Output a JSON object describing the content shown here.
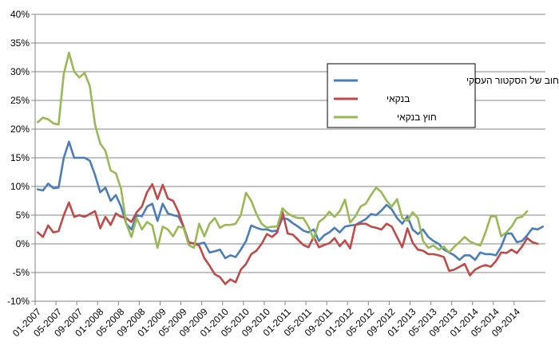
{
  "chart_data": {
    "type": "line",
    "title": "",
    "xlabel": "",
    "ylabel": "",
    "ylim": [
      -10,
      40
    ],
    "y_ticks": [
      "-10%",
      "-5%",
      "0%",
      "5%",
      "10%",
      "15%",
      "20%",
      "25%",
      "30%",
      "35%",
      "40%"
    ],
    "x_ticks": [
      "01-2007",
      "05-2007",
      "09-2007",
      "01-2008",
      "05-2008",
      "09-2008",
      "01-2009",
      "05-2009",
      "09-2009",
      "01-2010",
      "05-2010",
      "09-2010",
      "01-2011",
      "05-2011",
      "09-2011",
      "01-2012",
      "05-2012",
      "09-2012",
      "01-2013",
      "05-2013",
      "09-2013",
      "01-2014",
      "05-2014",
      "09-2014"
    ],
    "grid": "horizontal",
    "legend_position": "right",
    "x_start": "2007-01",
    "x_end": "2014-12",
    "series": [
      {
        "name": "סך החוב של הסקטור העסקי",
        "color": "#4a7ebb",
        "values": [
          9.5,
          9.3,
          10.5,
          9.7,
          9.8,
          15.0,
          17.8,
          15.0,
          15.0,
          15.0,
          14.5,
          12.0,
          9.0,
          9.8,
          7.5,
          8.5,
          6.5,
          3.5,
          2.5,
          5.0,
          4.8,
          6.5,
          7.0,
          4.0,
          7.0,
          5.3,
          5.0,
          4.8,
          3.0,
          0.3,
          0.0,
          0.0,
          0.2,
          -1.5,
          -1.3,
          -1.0,
          -2.5,
          -2.0,
          -2.3,
          -1.0,
          0.5,
          3.2,
          2.8,
          2.5,
          2.5,
          2.2,
          2.3,
          4.5,
          4.3,
          3.6,
          3.0,
          2.3,
          2.0,
          2.5,
          0.5,
          1.5,
          2.0,
          2.8,
          2.0,
          3.0,
          3.2,
          3.3,
          3.8,
          4.3,
          5.2,
          5.0,
          5.8,
          6.8,
          6.0,
          4.5,
          3.5,
          4.8,
          2.5,
          1.7,
          2.5,
          1.2,
          0.5,
          0.0,
          -1.0,
          -1.5,
          -2.0,
          -2.8,
          -2.0,
          -2.0,
          -2.8,
          -1.5,
          -1.8,
          -1.8,
          -2.0,
          -0.5,
          1.8,
          1.8,
          0.3,
          0.5,
          1.5,
          2.7,
          2.5,
          3.0
        ]
      },
      {
        "name": "בנקאי",
        "color": "#be4b48",
        "values": [
          2.0,
          1.2,
          3.2,
          2.0,
          2.2,
          5.0,
          7.2,
          4.7,
          5.0,
          4.7,
          5.2,
          5.7,
          2.7,
          4.7,
          3.3,
          5.3,
          4.7,
          4.5,
          3.8,
          5.5,
          6.5,
          9.0,
          10.4,
          7.8,
          10.3,
          7.9,
          7.5,
          5.6,
          3.0,
          0.2,
          0.1,
          -0.3,
          -2.5,
          -3.8,
          -5.3,
          -5.8,
          -7.0,
          -6.2,
          -6.7,
          -4.5,
          -3.5,
          -1.8,
          -1.2,
          0.0,
          1.7,
          1.2,
          2.0,
          5.6,
          1.8,
          1.6,
          0.7,
          -0.2,
          -0.6,
          1.2,
          -0.6,
          -0.2,
          0.1,
          1.0,
          -0.4,
          0.6,
          -0.8,
          3.3,
          3.5,
          3.5,
          3.0,
          2.8,
          2.5,
          3.5,
          3.0,
          1.2,
          -0.6,
          2.7,
          0.2,
          -1.0,
          -1.2,
          -1.8,
          -1.8,
          -2.0,
          -2.3,
          -4.7,
          -4.5,
          -4.0,
          -3.5,
          -5.5,
          -4.5,
          -4.0,
          -3.7,
          -4.0,
          -3.0,
          -1.5,
          -1.6,
          -1.0,
          -1.6,
          -0.5,
          1.0,
          0.3,
          0.0
        ]
      },
      {
        "name": "חוץ בנקאי",
        "color": "#98b954",
        "values": [
          21.2,
          22.0,
          21.7,
          21.0,
          20.8,
          29.6,
          33.3,
          30.0,
          29.0,
          29.8,
          27.5,
          20.8,
          17.5,
          16.2,
          12.8,
          12.3,
          9.6,
          3.5,
          1.2,
          4.5,
          2.5,
          3.8,
          3.2,
          -0.7,
          3.0,
          2.5,
          1.3,
          3.0,
          2.8,
          -0.2,
          -0.7,
          3.5,
          1.3,
          3.5,
          4.5,
          2.8,
          3.3,
          3.3,
          3.5,
          5.0,
          8.9,
          7.5,
          5.2,
          3.5,
          2.8,
          3.0,
          3.0,
          6.2,
          5.3,
          4.8,
          4.5,
          4.5,
          3.0,
          0.8,
          3.8,
          4.5,
          5.6,
          4.7,
          5.7,
          7.7,
          3.7,
          4.8,
          6.5,
          7.0,
          8.5,
          9.8,
          9.0,
          7.5,
          6.5,
          7.8,
          4.5,
          4.0,
          5.5,
          4.5,
          0.5,
          -0.7,
          -0.3,
          -1.0,
          -0.5,
          -1.5,
          -0.5,
          0.3,
          1.2,
          0.4,
          0.0,
          -0.3,
          2.0,
          4.8,
          4.8,
          1.3,
          2.0,
          3.0,
          4.5,
          4.7,
          5.7
        ]
      }
    ]
  }
}
